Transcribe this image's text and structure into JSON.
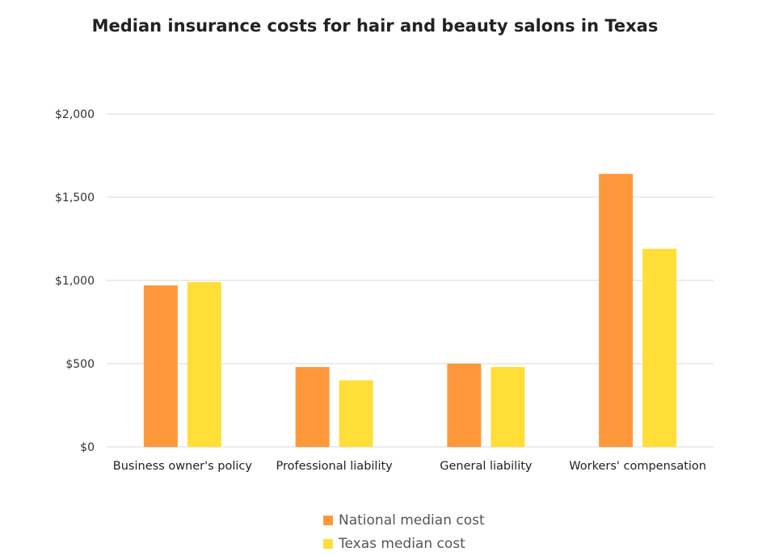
{
  "chart_data": {
    "type": "bar",
    "title": "Median insurance costs for hair and beauty salons in Texas",
    "categories": [
      "Business owner's policy",
      "Professional liability",
      "General liability",
      "Workers' compensation"
    ],
    "series": [
      {
        "name": "National median cost",
        "color": "#FF983A",
        "values": [
          970,
          480,
          500,
          1640
        ]
      },
      {
        "name": "Texas median cost",
        "color": "#FFDE38",
        "values": [
          990,
          400,
          480,
          1190
        ]
      }
    ],
    "yticks": [
      "$0",
      "$500",
      "$1,000",
      "$1,500",
      "$2,000"
    ],
    "ylim": [
      0,
      2000
    ],
    "grid": true,
    "legend": "bottom"
  }
}
